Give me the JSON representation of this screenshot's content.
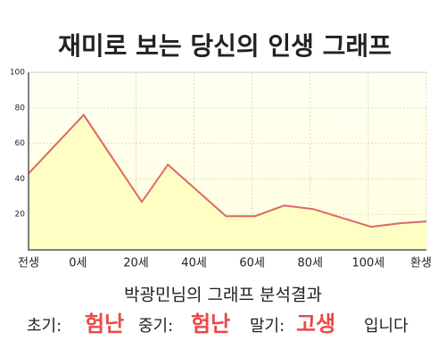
{
  "chart_data": {
    "type": "area",
    "title": "재미로 보는 당신의 인생 그래프",
    "x": [
      -17,
      2,
      22,
      31,
      51,
      61,
      71,
      81,
      101,
      111,
      120
    ],
    "series": [
      {
        "color": "#e06666",
        "fill": "#ffffc4",
        "values": [
          43,
          76,
          27,
          48,
          19,
          19,
          25,
          23,
          13,
          15,
          16
        ]
      }
    ],
    "xlim": [
      -17,
      120
    ],
    "xticks": [
      {
        "value": -17,
        "label": "전생"
      },
      {
        "value": 0,
        "label": "0세"
      },
      {
        "value": 20,
        "label": "20세"
      },
      {
        "value": 40,
        "label": "40세"
      },
      {
        "value": 60,
        "label": "60세"
      },
      {
        "value": 80,
        "label": "80세"
      },
      {
        "value": 100,
        "label": "100세"
      },
      {
        "value": 120,
        "label": "환생"
      }
    ],
    "ylim": [
      0,
      100
    ],
    "yticks": [
      20,
      40,
      60,
      80,
      100
    ],
    "grid": true
  },
  "result": {
    "heading": "박광민님의 그래프 분석결과",
    "parts": [
      {
        "label": "초기:",
        "verdict": "험난"
      },
      {
        "label": "중기:",
        "verdict": "험난"
      },
      {
        "label": "말기:",
        "verdict": "고생"
      }
    ],
    "ending": "입니다"
  }
}
